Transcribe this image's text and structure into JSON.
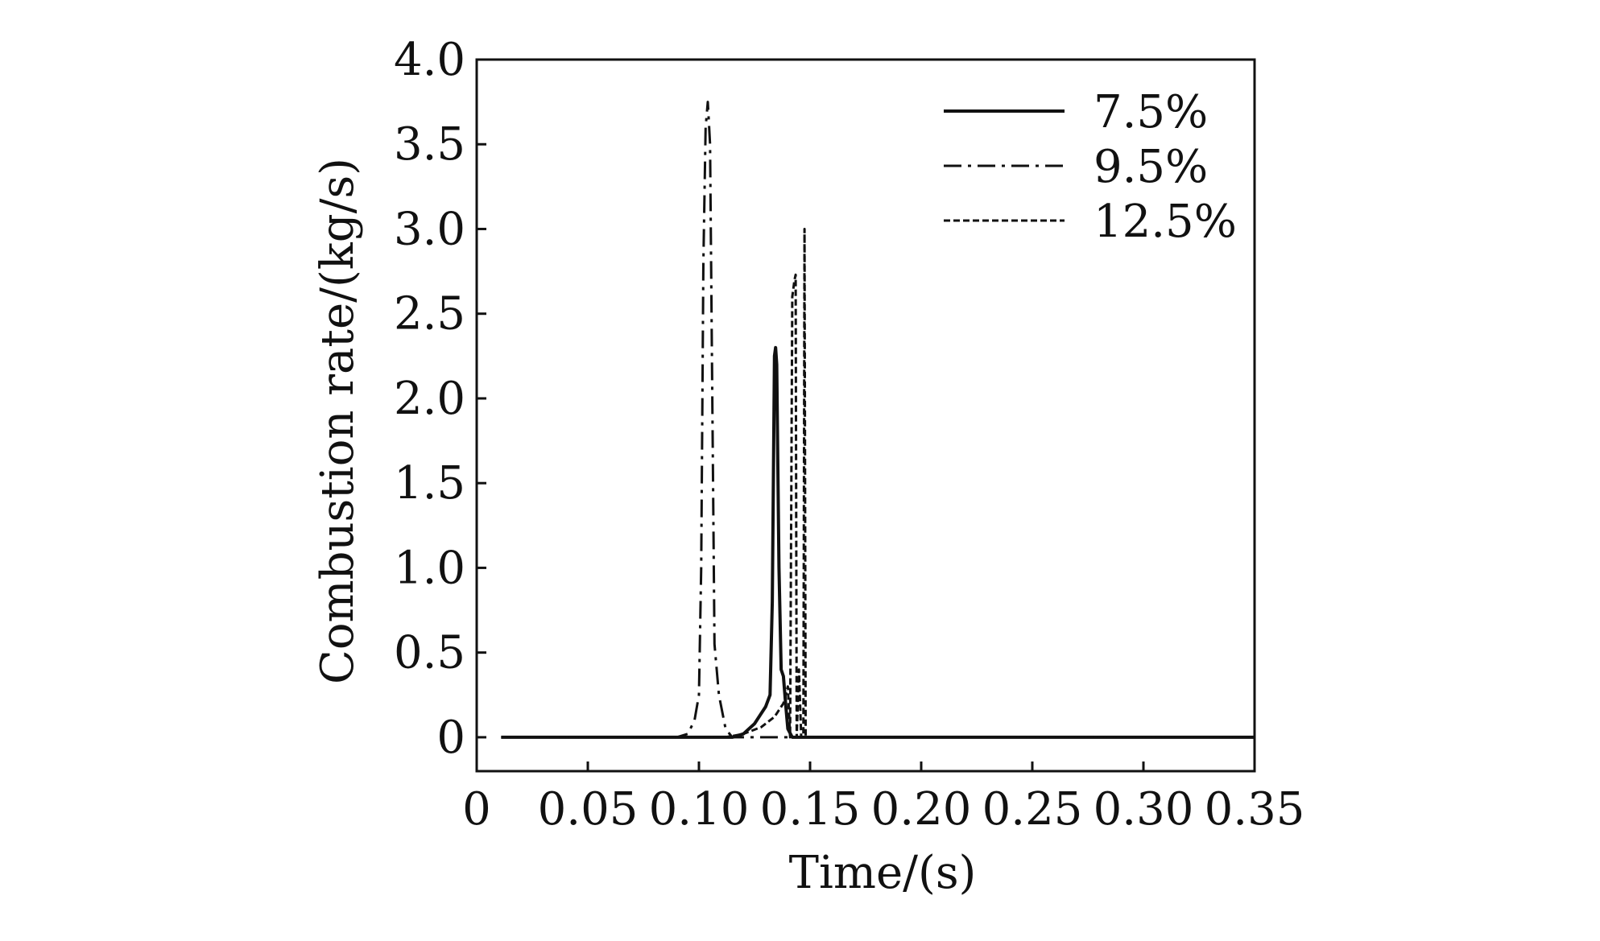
{
  "chart_data": {
    "type": "line",
    "title": "",
    "xlabel": "Time/(s)",
    "ylabel": "Combustion rate/(kg/s)",
    "xlim": [
      0,
      0.35
    ],
    "ylim": [
      -0.2,
      4.0
    ],
    "x_ticks": [
      0,
      0.05,
      0.1,
      0.15,
      0.2,
      0.25,
      0.3,
      0.35
    ],
    "x_tick_labels": [
      "0",
      "0.05",
      "0.10",
      "0.15",
      "0.20",
      "0.25",
      "0.30",
      "0.35"
    ],
    "y_ticks": [
      0,
      0.5,
      1.0,
      1.5,
      2.0,
      2.5,
      3.0,
      3.5,
      4.0
    ],
    "y_tick_labels": [
      "0",
      "0.5",
      "1.0",
      "1.5",
      "2.0",
      "2.5",
      "3.0",
      "3.5",
      "4.0"
    ],
    "grid": false,
    "legend_position": "top-right",
    "series": [
      {
        "name": "7.5%",
        "line_style": "solid",
        "color": "#111111",
        "points": [
          [
            0.011,
            0.0
          ],
          [
            0.115,
            0.0
          ],
          [
            0.12,
            0.02
          ],
          [
            0.125,
            0.08
          ],
          [
            0.13,
            0.18
          ],
          [
            0.132,
            0.25
          ],
          [
            0.133,
            0.8
          ],
          [
            0.134,
            2.25
          ],
          [
            0.1345,
            2.3
          ],
          [
            0.135,
            2.2
          ],
          [
            0.136,
            1.0
          ],
          [
            0.137,
            0.4
          ],
          [
            0.138,
            0.36
          ],
          [
            0.139,
            0.2
          ],
          [
            0.14,
            0.05
          ],
          [
            0.142,
            0.0
          ],
          [
            0.35,
            0.0
          ]
        ]
      },
      {
        "name": "9.5%",
        "line_style": "dashdot",
        "color": "#111111",
        "points": [
          [
            0.011,
            0.0
          ],
          [
            0.09,
            0.0
          ],
          [
            0.095,
            0.02
          ],
          [
            0.098,
            0.1
          ],
          [
            0.1,
            0.25
          ],
          [
            0.101,
            1.0
          ],
          [
            0.102,
            2.8
          ],
          [
            0.103,
            3.6
          ],
          [
            0.104,
            3.75
          ],
          [
            0.105,
            3.5
          ],
          [
            0.106,
            2.0
          ],
          [
            0.107,
            0.55
          ],
          [
            0.109,
            0.25
          ],
          [
            0.112,
            0.05
          ],
          [
            0.115,
            0.0
          ],
          [
            0.35,
            0.0
          ]
        ]
      },
      {
        "name": "12.5%",
        "line_style": "dashed",
        "color": "#111111",
        "points": [
          [
            0.011,
            0.0
          ],
          [
            0.112,
            0.0
          ],
          [
            0.12,
            0.02
          ],
          [
            0.128,
            0.06
          ],
          [
            0.134,
            0.12
          ],
          [
            0.138,
            0.2
          ],
          [
            0.14,
            0.3
          ],
          [
            0.141,
            0.0
          ],
          [
            0.142,
            2.6
          ],
          [
            0.143,
            2.7
          ],
          [
            0.1435,
            2.73
          ],
          [
            0.144,
            0.0
          ],
          [
            0.145,
            0.4
          ],
          [
            0.146,
            0.0
          ],
          [
            0.147,
            0.0
          ],
          [
            0.1475,
            3.0
          ],
          [
            0.148,
            0.0
          ],
          [
            0.35,
            0.0
          ]
        ]
      }
    ]
  }
}
